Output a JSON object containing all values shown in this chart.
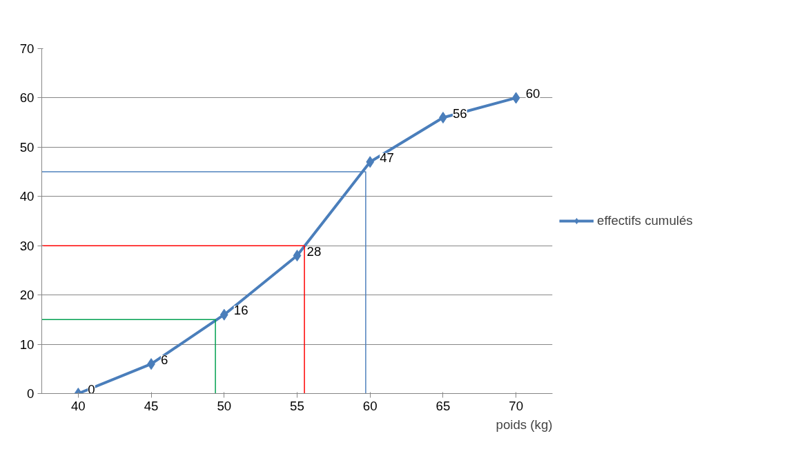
{
  "chart_data": {
    "type": "line",
    "xlabel": "poids (kg)",
    "x": [
      40,
      45,
      50,
      55,
      60,
      65,
      70
    ],
    "series": [
      {
        "name": "effectifs cumulés",
        "color": "#4a7ebb",
        "values": [
          0,
          6,
          16,
          28,
          47,
          56,
          60
        ],
        "marker": "diamond",
        "data_labels": true
      },
      {
        "type": "line",
        "color": "#00a050",
        "x": [
          37.5,
          49.4,
          49.4
        ],
        "values": [
          15,
          15,
          0
        ],
        "marker": "none"
      },
      {
        "type": "line",
        "color": "#ff0000",
        "x": [
          37.5,
          55.5,
          55.5
        ],
        "values": [
          30,
          30,
          0
        ],
        "marker": "none"
      },
      {
        "type": "line",
        "color": "#4f81bd",
        "x": [
          37.5,
          59.7,
          59.7
        ],
        "values": [
          45,
          45,
          0
        ],
        "marker": "none"
      }
    ],
    "xlim": [
      37.5,
      72.5
    ],
    "xticks": [
      40,
      45,
      50,
      55,
      60,
      65,
      70
    ],
    "ylim": [
      0,
      70
    ],
    "yticks": [
      0,
      10,
      20,
      30,
      40,
      50,
      60,
      70
    ],
    "grid": "y",
    "legend": "right"
  }
}
